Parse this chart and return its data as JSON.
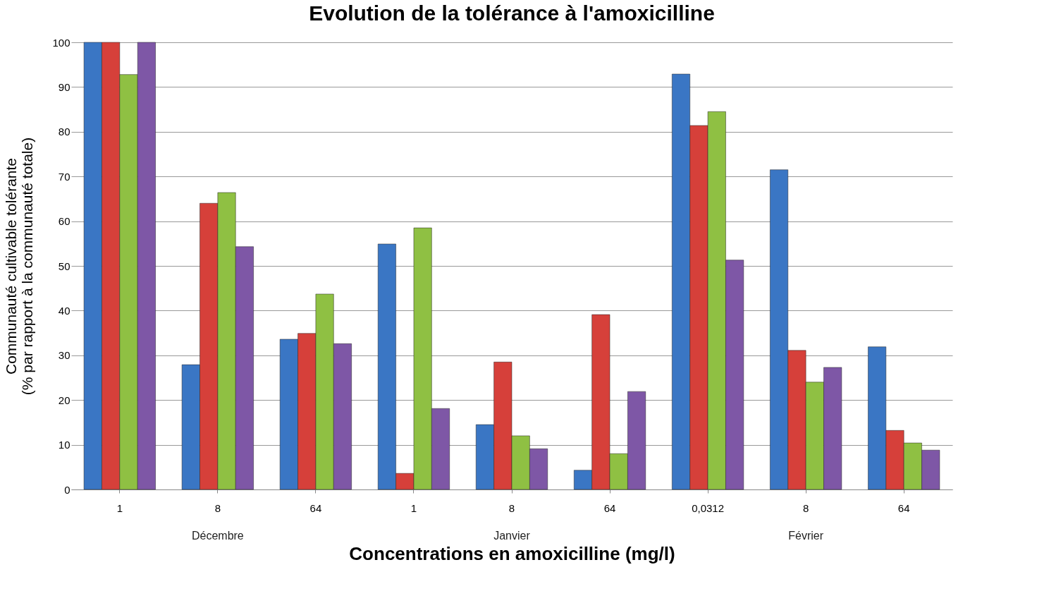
{
  "chart_data": {
    "type": "bar",
    "title": "Evolution de la tolérance à l'amoxicilline",
    "xlabel": "Concentrations en amoxicilline (mg/l)",
    "ylabel": "Communauté cultivable tolérante\n(% par rapport à la communauté  totale)",
    "categories": [
      "1",
      "8",
      "64",
      "1",
      "8",
      "64",
      "0,0312",
      "8",
      "64"
    ],
    "series": [
      {
        "color": "#3a76c4",
        "values": [
          100,
          27.9,
          33.6,
          54.9,
          14.5,
          4.3,
          92.9,
          71.5,
          31.9
        ]
      },
      {
        "color": "#d6403a",
        "values": [
          100,
          64.0,
          34.9,
          3.6,
          28.5,
          39.1,
          81.4,
          31.1,
          13.2
        ]
      },
      {
        "color": "#8fc043",
        "values": [
          92.8,
          66.4,
          43.7,
          58.5,
          12.0,
          8.0,
          84.5,
          24.0,
          10.4
        ]
      },
      {
        "color": "#7e57a6",
        "values": [
          100,
          54.3,
          32.6,
          18.1,
          9.1,
          21.9,
          51.3,
          27.3,
          8.8
        ]
      }
    ],
    "annotations": [
      "Décembre",
      "Janvier",
      "Février"
    ],
    "ylim": [
      0,
      100
    ],
    "yticks": [
      0,
      10,
      20,
      30,
      40,
      50,
      60,
      70,
      80,
      90,
      100
    ],
    "grid": "y",
    "legend": false
  }
}
